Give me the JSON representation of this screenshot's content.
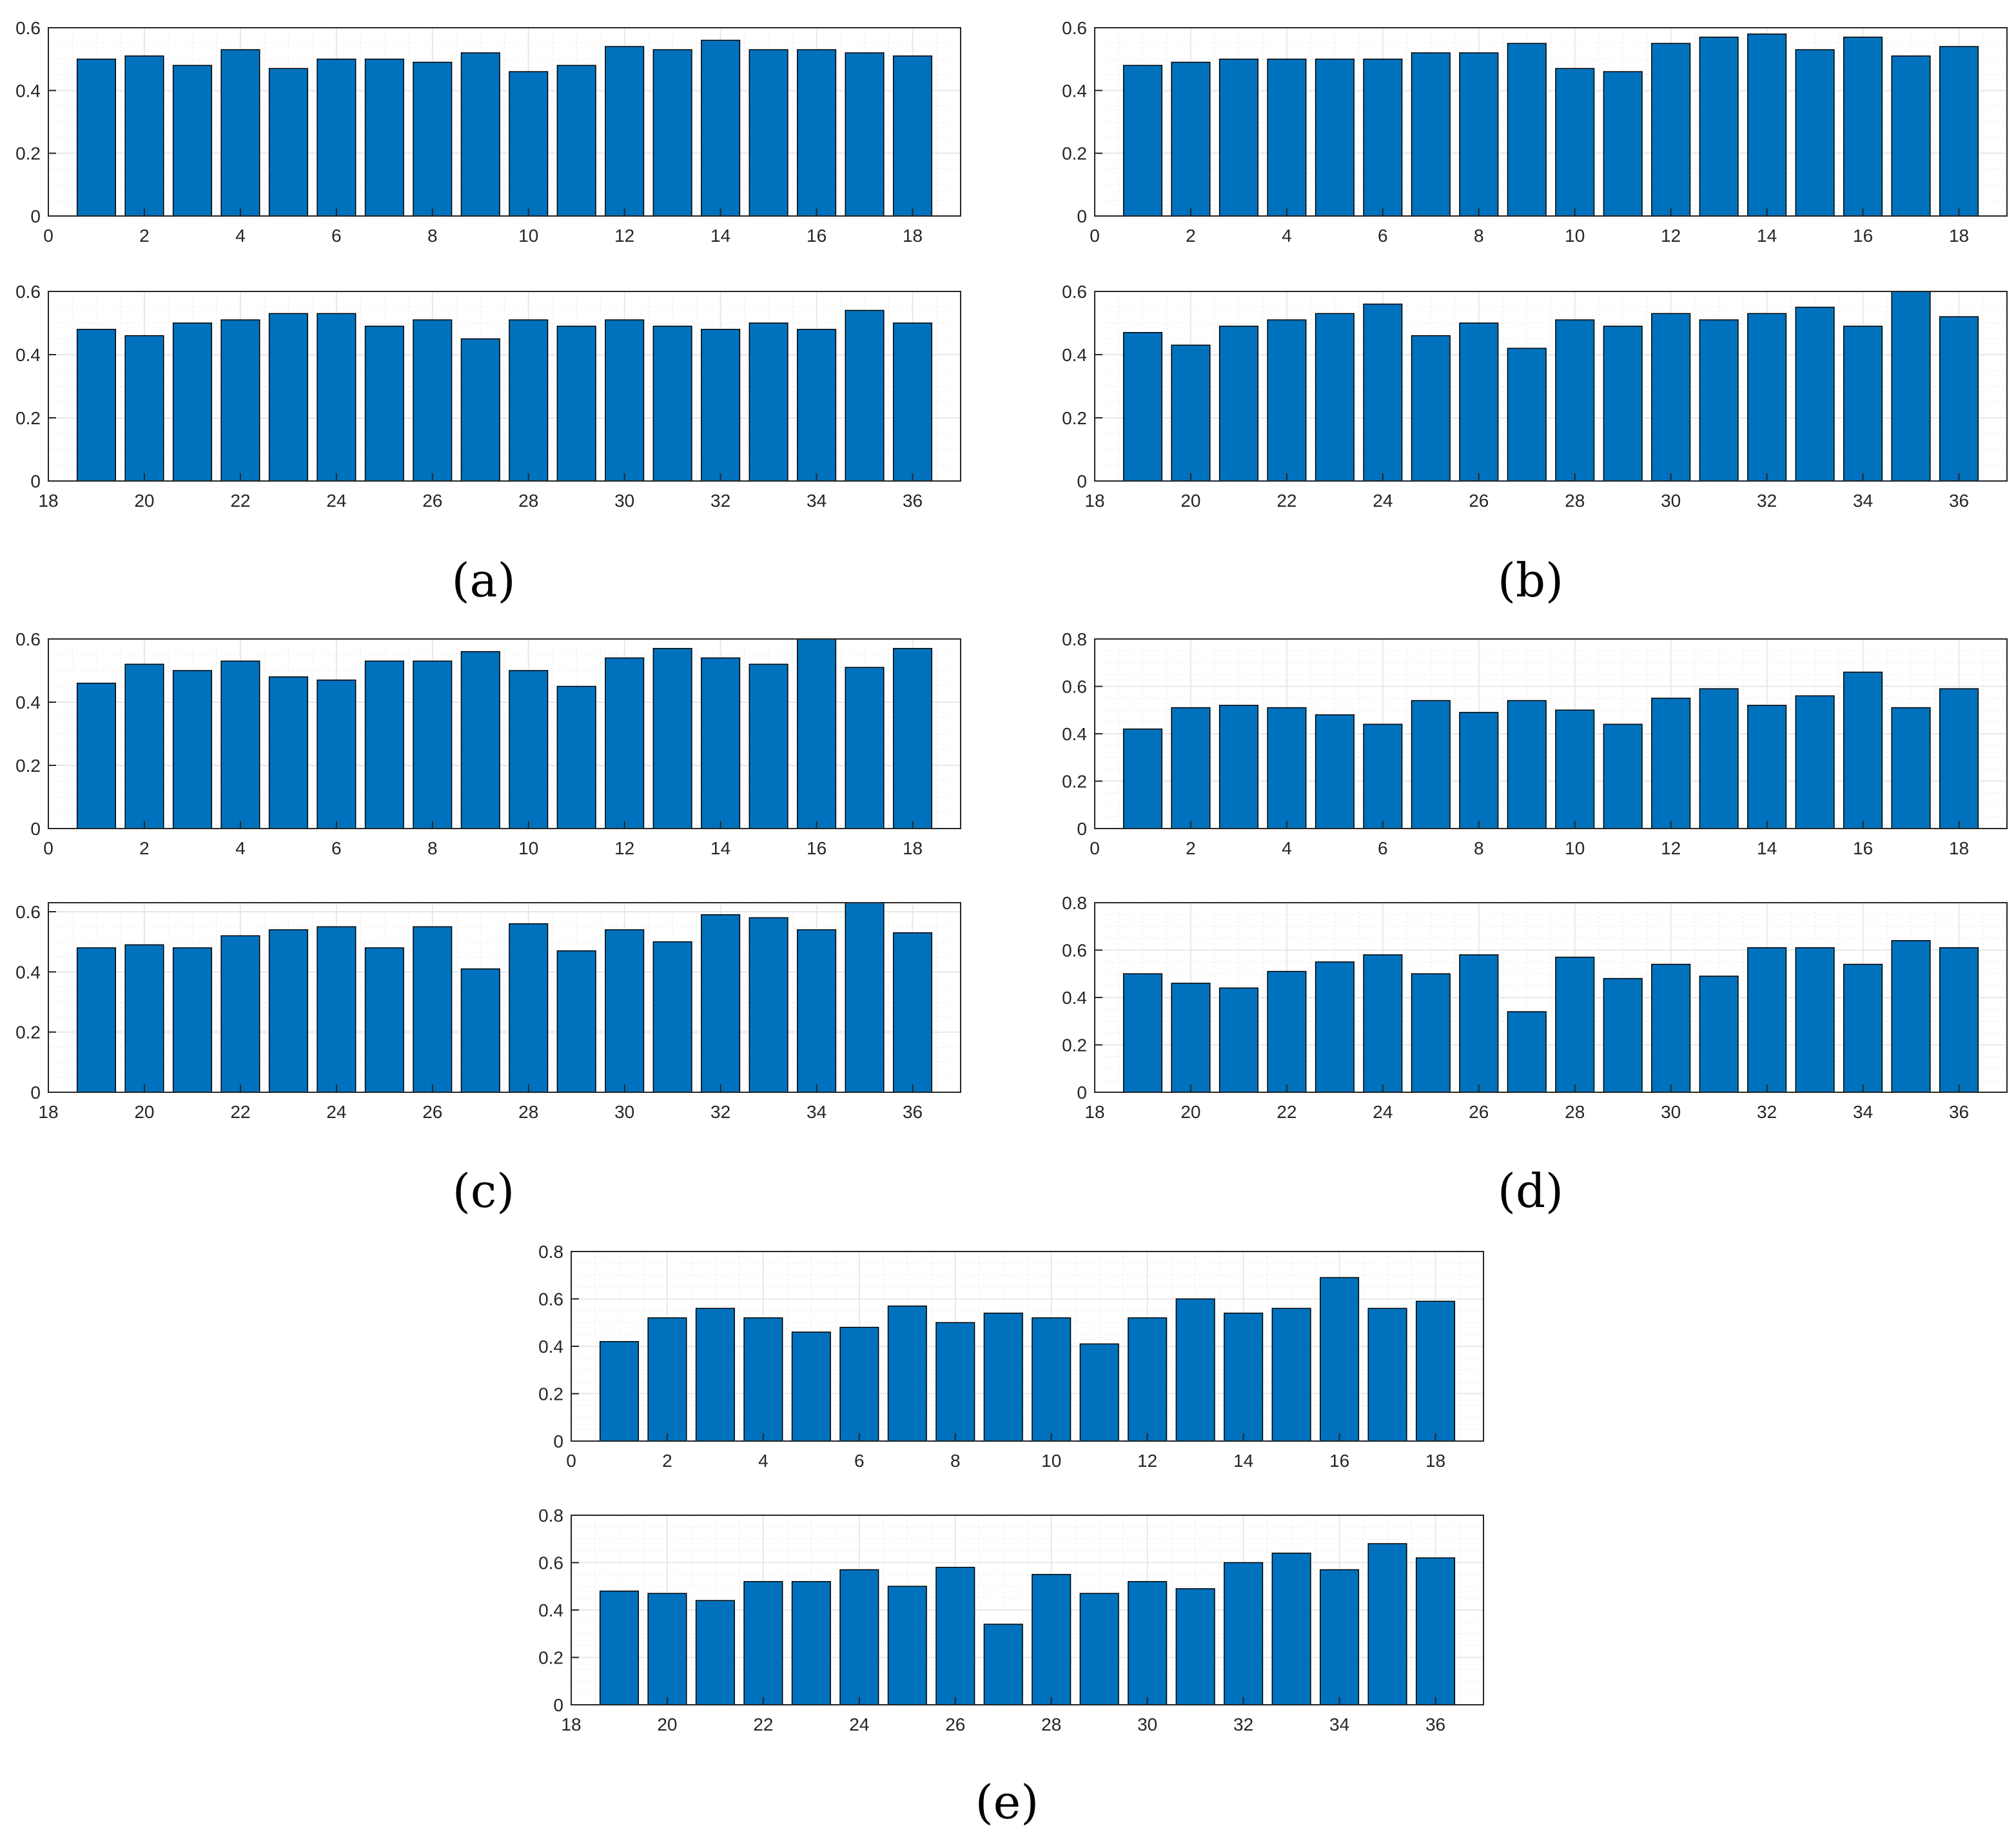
{
  "colors": {
    "bar": "#0072BD",
    "bar_edge": "#000000",
    "grid": "#e8e8e8",
    "axis": "#262626"
  },
  "chart_data": [
    {
      "panel": "(a)",
      "type": "bar",
      "subplots": [
        {
          "x": [
            1,
            2,
            3,
            4,
            5,
            6,
            7,
            8,
            9,
            10,
            11,
            12,
            13,
            14,
            15,
            16,
            17,
            18
          ],
          "values": [
            0.5,
            0.51,
            0.48,
            0.53,
            0.47,
            0.5,
            0.5,
            0.49,
            0.52,
            0.46,
            0.48,
            0.54,
            0.53,
            0.56,
            0.53,
            0.53,
            0.52,
            0.51
          ],
          "xlim": [
            0,
            19
          ],
          "xticks": [
            0,
            2,
            4,
            6,
            8,
            10,
            12,
            14,
            16,
            18
          ],
          "ylim": [
            0,
            0.6
          ],
          "yticks": [
            0,
            0.2,
            0.4,
            0.6
          ]
        },
        {
          "x": [
            19,
            20,
            21,
            22,
            23,
            24,
            25,
            26,
            27,
            28,
            29,
            30,
            31,
            32,
            33,
            34,
            35,
            36
          ],
          "values": [
            0.48,
            0.46,
            0.5,
            0.51,
            0.53,
            0.53,
            0.49,
            0.51,
            0.45,
            0.51,
            0.49,
            0.51,
            0.49,
            0.48,
            0.5,
            0.48,
            0.54,
            0.5
          ],
          "xlim": [
            18,
            37
          ],
          "xticks": [
            18,
            20,
            22,
            24,
            26,
            28,
            30,
            32,
            34,
            36
          ],
          "ylim": [
            0,
            0.6
          ],
          "yticks": [
            0,
            0.2,
            0.4,
            0.6
          ]
        }
      ]
    },
    {
      "panel": "(b)",
      "type": "bar",
      "subplots": [
        {
          "x": [
            1,
            2,
            3,
            4,
            5,
            6,
            7,
            8,
            9,
            10,
            11,
            12,
            13,
            14,
            15,
            16,
            17,
            18
          ],
          "values": [
            0.48,
            0.49,
            0.5,
            0.5,
            0.5,
            0.5,
            0.52,
            0.52,
            0.55,
            0.47,
            0.46,
            0.55,
            0.57,
            0.58,
            0.53,
            0.57,
            0.51,
            0.54
          ],
          "xlim": [
            0,
            19
          ],
          "xticks": [
            0,
            2,
            4,
            6,
            8,
            10,
            12,
            14,
            16,
            18
          ],
          "ylim": [
            0,
            0.6
          ],
          "yticks": [
            0,
            0.2,
            0.4,
            0.6
          ]
        },
        {
          "x": [
            19,
            20,
            21,
            22,
            23,
            24,
            25,
            26,
            27,
            28,
            29,
            30,
            31,
            32,
            33,
            34,
            35,
            36
          ],
          "values": [
            0.47,
            0.43,
            0.49,
            0.51,
            0.53,
            0.56,
            0.46,
            0.5,
            0.42,
            0.51,
            0.49,
            0.53,
            0.51,
            0.53,
            0.55,
            0.49,
            0.6,
            0.52
          ],
          "xlim": [
            18,
            37
          ],
          "xticks": [
            18,
            20,
            22,
            24,
            26,
            28,
            30,
            32,
            34,
            36
          ],
          "ylim": [
            0,
            0.6
          ],
          "yticks": [
            0,
            0.2,
            0.4,
            0.6
          ]
        }
      ]
    },
    {
      "panel": "(c)",
      "type": "bar",
      "subplots": [
        {
          "x": [
            1,
            2,
            3,
            4,
            5,
            6,
            7,
            8,
            9,
            10,
            11,
            12,
            13,
            14,
            15,
            16,
            17,
            18
          ],
          "values": [
            0.46,
            0.52,
            0.5,
            0.53,
            0.48,
            0.47,
            0.53,
            0.53,
            0.56,
            0.5,
            0.45,
            0.54,
            0.57,
            0.54,
            0.52,
            0.6,
            0.51,
            0.57
          ],
          "xlim": [
            0,
            19
          ],
          "xticks": [
            0,
            2,
            4,
            6,
            8,
            10,
            12,
            14,
            16,
            18
          ],
          "ylim": [
            0,
            0.6
          ],
          "yticks": [
            0,
            0.2,
            0.4,
            0.6
          ]
        },
        {
          "x": [
            19,
            20,
            21,
            22,
            23,
            24,
            25,
            26,
            27,
            28,
            29,
            30,
            31,
            32,
            33,
            34,
            35,
            36
          ],
          "values": [
            0.48,
            0.49,
            0.48,
            0.52,
            0.54,
            0.55,
            0.48,
            0.55,
            0.41,
            0.56,
            0.47,
            0.54,
            0.5,
            0.59,
            0.58,
            0.54,
            0.63,
            0.53
          ],
          "xlim": [
            18,
            37
          ],
          "xticks": [
            18,
            20,
            22,
            24,
            26,
            28,
            30,
            32,
            34,
            36
          ],
          "ylim": [
            0,
            0.63
          ],
          "yticks": [
            0,
            0.2,
            0.4,
            0.6
          ]
        }
      ]
    },
    {
      "panel": "(d)",
      "type": "bar",
      "subplots": [
        {
          "x": [
            1,
            2,
            3,
            4,
            5,
            6,
            7,
            8,
            9,
            10,
            11,
            12,
            13,
            14,
            15,
            16,
            17,
            18
          ],
          "values": [
            0.42,
            0.51,
            0.52,
            0.51,
            0.48,
            0.44,
            0.54,
            0.49,
            0.54,
            0.5,
            0.44,
            0.55,
            0.59,
            0.52,
            0.56,
            0.66,
            0.51,
            0.59
          ],
          "xlim": [
            0,
            19
          ],
          "xticks": [
            0,
            2,
            4,
            6,
            8,
            10,
            12,
            14,
            16,
            18
          ],
          "ylim": [
            0,
            0.8
          ],
          "yticks": [
            0,
            0.2,
            0.4,
            0.6,
            0.8
          ]
        },
        {
          "x": [
            19,
            20,
            21,
            22,
            23,
            24,
            25,
            26,
            27,
            28,
            29,
            30,
            31,
            32,
            33,
            34,
            35,
            36
          ],
          "values": [
            0.5,
            0.46,
            0.44,
            0.51,
            0.55,
            0.58,
            0.5,
            0.58,
            0.34,
            0.57,
            0.48,
            0.54,
            0.49,
            0.61,
            0.61,
            0.54,
            0.64,
            0.61
          ],
          "xlim": [
            18,
            37
          ],
          "xticks": [
            18,
            20,
            22,
            24,
            26,
            28,
            30,
            32,
            34,
            36
          ],
          "ylim": [
            0,
            0.8
          ],
          "yticks": [
            0,
            0.2,
            0.4,
            0.6,
            0.8
          ]
        }
      ]
    },
    {
      "panel": "(e)",
      "type": "bar",
      "subplots": [
        {
          "x": [
            1,
            2,
            3,
            4,
            5,
            6,
            7,
            8,
            9,
            10,
            11,
            12,
            13,
            14,
            15,
            16,
            17,
            18
          ],
          "values": [
            0.42,
            0.52,
            0.56,
            0.52,
            0.46,
            0.48,
            0.57,
            0.5,
            0.54,
            0.52,
            0.41,
            0.52,
            0.6,
            0.54,
            0.56,
            0.69,
            0.56,
            0.59
          ],
          "xlim": [
            0,
            19
          ],
          "xticks": [
            0,
            2,
            4,
            6,
            8,
            10,
            12,
            14,
            16,
            18
          ],
          "ylim": [
            0,
            0.8
          ],
          "yticks": [
            0,
            0.2,
            0.4,
            0.6,
            0.8
          ]
        },
        {
          "x": [
            19,
            20,
            21,
            22,
            23,
            24,
            25,
            26,
            27,
            28,
            29,
            30,
            31,
            32,
            33,
            34,
            35,
            36
          ],
          "values": [
            0.48,
            0.47,
            0.44,
            0.52,
            0.52,
            0.57,
            0.5,
            0.58,
            0.34,
            0.55,
            0.47,
            0.52,
            0.49,
            0.6,
            0.64,
            0.57,
            0.68,
            0.62
          ],
          "xlim": [
            18,
            37
          ],
          "xticks": [
            18,
            20,
            22,
            24,
            26,
            28,
            30,
            32,
            34,
            36
          ],
          "ylim": [
            0,
            0.8
          ],
          "yticks": [
            0,
            0.2,
            0.4,
            0.6,
            0.8
          ]
        }
      ]
    }
  ]
}
